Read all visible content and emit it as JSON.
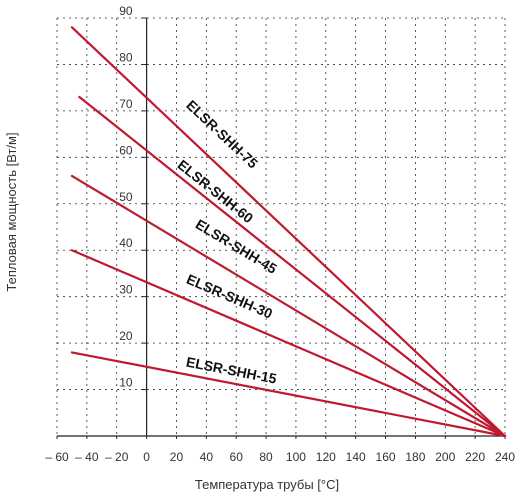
{
  "chart_data": {
    "type": "line",
    "xlabel": "Температура трубы [°C]",
    "ylabel": "Тепловая мощность [Вт/м]",
    "xlim": [
      -60,
      240
    ],
    "ylim": [
      0,
      90
    ],
    "x_ticks": [
      "– 60",
      "– 40",
      "– 20",
      "0",
      "20",
      "40",
      "60",
      "80",
      "100",
      "120",
      "140",
      "160",
      "180",
      "200",
      "220",
      "240"
    ],
    "y_ticks": [
      "10",
      "20",
      "30",
      "40",
      "50",
      "60",
      "70",
      "80",
      "90"
    ],
    "grid": true,
    "series": [
      {
        "name": "ELSR-SHH-75",
        "x": [
          -50,
          240
        ],
        "y": [
          88,
          0
        ],
        "label_x": 26,
        "label_y": 71
      },
      {
        "name": "ELSR-SHH-60",
        "x": [
          -45,
          240
        ],
        "y": [
          73,
          0
        ],
        "label_x": 20,
        "label_y": 58
      },
      {
        "name": "ELSR-SHH-45",
        "x": [
          -50,
          240
        ],
        "y": [
          56,
          0
        ],
        "label_x": 32,
        "label_y": 45
      },
      {
        "name": "ELSR-SHH-30",
        "x": [
          -50,
          240
        ],
        "y": [
          40,
          0
        ],
        "label_x": 26,
        "label_y": 33
      },
      {
        "name": "ELSR-SHH-15",
        "x": [
          -50,
          240
        ],
        "y": [
          18,
          0
        ],
        "label_x": 26,
        "label_y": 15
      }
    ],
    "line_color": "#c0182f"
  }
}
